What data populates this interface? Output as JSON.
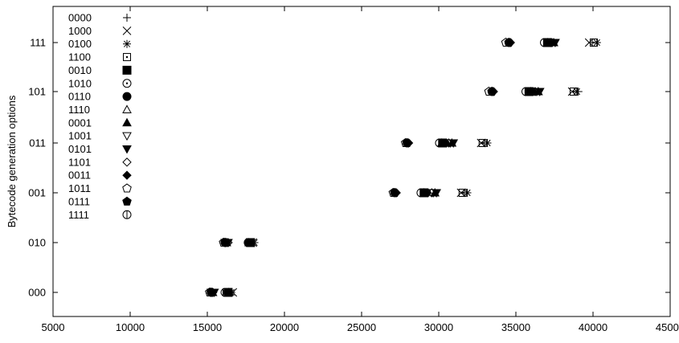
{
  "chart_data": {
    "type": "scatter",
    "ylabel": "Bytecode generation options",
    "xlabel": "",
    "title": "",
    "xlim": [
      5000,
      45000
    ],
    "x_ticks": [
      5000,
      10000,
      15000,
      20000,
      25000,
      30000,
      35000,
      40000,
      45000
    ],
    "y_categories": [
      "000",
      "010",
      "001",
      "011",
      "101",
      "111"
    ],
    "grid": false,
    "legend_placement": "top-left",
    "series": [
      {
        "name": "0000",
        "marker": "plus",
        "points": [
          [
            16450,
            "000"
          ],
          [
            17850,
            "010"
          ],
          [
            31650,
            "001"
          ],
          [
            32950,
            "011"
          ],
          [
            39050,
            "101"
          ],
          [
            39950,
            "111"
          ]
        ]
      },
      {
        "name": "1000",
        "marker": "cross",
        "points": [
          [
            16650,
            "000"
          ],
          [
            17950,
            "010"
          ],
          [
            31450,
            "001"
          ],
          [
            32750,
            "011"
          ],
          [
            38650,
            "101"
          ],
          [
            39750,
            "111"
          ]
        ]
      },
      {
        "name": "0100",
        "marker": "star",
        "points": [
          [
            16550,
            "000"
          ],
          [
            18050,
            "010"
          ],
          [
            31850,
            "001"
          ],
          [
            33150,
            "011"
          ],
          [
            38950,
            "101"
          ],
          [
            40250,
            "111"
          ]
        ]
      },
      {
        "name": "1100",
        "marker": "square-open",
        "points": [
          [
            16250,
            "000"
          ],
          [
            17750,
            "010"
          ],
          [
            31550,
            "001"
          ],
          [
            32850,
            "011"
          ],
          [
            38750,
            "101"
          ],
          [
            40050,
            "111"
          ]
        ]
      },
      {
        "name": "0010",
        "marker": "square-filled",
        "points": [
          [
            16350,
            "000"
          ],
          [
            17800,
            "010"
          ],
          [
            29050,
            "001"
          ],
          [
            30250,
            "011"
          ],
          [
            35850,
            "101"
          ],
          [
            37050,
            "111"
          ]
        ]
      },
      {
        "name": "1010",
        "marker": "circle-open",
        "points": [
          [
            16150,
            "000"
          ],
          [
            17650,
            "010"
          ],
          [
            28850,
            "001"
          ],
          [
            30050,
            "011"
          ],
          [
            35650,
            "101"
          ],
          [
            36850,
            "111"
          ]
        ]
      },
      {
        "name": "0110",
        "marker": "circle-filled",
        "points": [
          [
            16300,
            "000"
          ],
          [
            17700,
            "010"
          ],
          [
            29200,
            "001"
          ],
          [
            30400,
            "011"
          ],
          [
            36050,
            "101"
          ],
          [
            37250,
            "111"
          ]
        ]
      },
      {
        "name": "1110",
        "marker": "triangle-open",
        "points": [
          [
            16400,
            "000"
          ],
          [
            17700,
            "010"
          ],
          [
            29050,
            "001"
          ],
          [
            30200,
            "011"
          ],
          [
            35950,
            "101"
          ],
          [
            37050,
            "111"
          ]
        ]
      },
      {
        "name": "0001",
        "marker": "triangle-filled",
        "points": [
          [
            15350,
            "000"
          ],
          [
            16250,
            "010"
          ],
          [
            29750,
            "001"
          ],
          [
            30850,
            "011"
          ],
          [
            36450,
            "101"
          ],
          [
            37450,
            "111"
          ]
        ]
      },
      {
        "name": "1001",
        "marker": "tri-down-open",
        "points": [
          [
            15250,
            "000"
          ],
          [
            16150,
            "010"
          ],
          [
            29650,
            "001"
          ],
          [
            30750,
            "011"
          ],
          [
            36350,
            "101"
          ],
          [
            37350,
            "111"
          ]
        ]
      },
      {
        "name": "0101",
        "marker": "tri-down-filled",
        "points": [
          [
            15450,
            "000"
          ],
          [
            16350,
            "010"
          ],
          [
            29850,
            "001"
          ],
          [
            30950,
            "011"
          ],
          [
            36550,
            "101"
          ],
          [
            37550,
            "111"
          ]
        ]
      },
      {
        "name": "1101",
        "marker": "diamond-open",
        "points": [
          [
            15350,
            "000"
          ],
          [
            16350,
            "010"
          ],
          [
            29550,
            "001"
          ],
          [
            30650,
            "011"
          ],
          [
            36250,
            "101"
          ],
          [
            37250,
            "111"
          ]
        ]
      },
      {
        "name": "0011",
        "marker": "diamond-filled",
        "points": [
          [
            15350,
            "000"
          ],
          [
            16250,
            "010"
          ],
          [
            27250,
            "001"
          ],
          [
            28050,
            "011"
          ],
          [
            33550,
            "101"
          ],
          [
            34650,
            "111"
          ]
        ]
      },
      {
        "name": "1011",
        "marker": "pentagon-open",
        "points": [
          [
            15150,
            "000"
          ],
          [
            16050,
            "010"
          ],
          [
            27050,
            "001"
          ],
          [
            27850,
            "011"
          ],
          [
            33250,
            "101"
          ],
          [
            34350,
            "111"
          ]
        ]
      },
      {
        "name": "0111",
        "marker": "pentagon-filled",
        "points": [
          [
            15250,
            "000"
          ],
          [
            16150,
            "010"
          ],
          [
            27150,
            "001"
          ],
          [
            27950,
            "011"
          ],
          [
            33450,
            "101"
          ],
          [
            34550,
            "111"
          ]
        ]
      },
      {
        "name": "1111",
        "marker": "circle-bar",
        "points": [
          [
            15250,
            "000"
          ],
          [
            16150,
            "010"
          ],
          [
            27150,
            "001"
          ],
          [
            27950,
            "011"
          ],
          [
            33450,
            "101"
          ],
          [
            34550,
            "111"
          ]
        ]
      }
    ]
  }
}
